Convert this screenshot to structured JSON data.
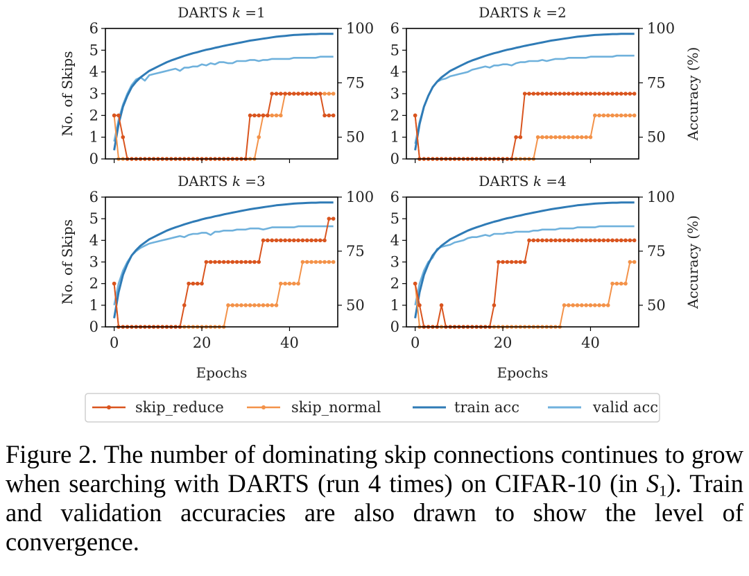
{
  "colors": {
    "skip_reduce": "#d9541e",
    "skip_normal": "#f39249",
    "train_acc": "#2f7bb6",
    "valid_acc": "#6fb1dc"
  },
  "chart_data": {
    "type": "line",
    "xlabel": "Epochs",
    "ylabel_left": "No. of Skips",
    "ylabel_right": "Accuracy (%)",
    "xlim": [
      -2,
      51
    ],
    "ylim_left": [
      0,
      6
    ],
    "ylim_right": [
      40,
      100
    ],
    "xticks": [
      0,
      20,
      40
    ],
    "yticks_left": [
      0,
      1,
      2,
      3,
      4,
      5,
      6
    ],
    "yticks_right": [
      50,
      75,
      100
    ],
    "legend": {
      "position": "bottom",
      "entries": [
        "skip_reduce",
        "skip_normal",
        "train acc",
        "valid acc"
      ]
    },
    "panels": [
      {
        "title_prefix": "DARTS ",
        "k_symbol": "k",
        "k_text": " =1",
        "skip_reduce": [
          2,
          2,
          1,
          0,
          0,
          0,
          0,
          0,
          0,
          0,
          0,
          0,
          0,
          0,
          0,
          0,
          0,
          0,
          0,
          0,
          0,
          0,
          0,
          0,
          0,
          0,
          0,
          0,
          0,
          0,
          0,
          2,
          2,
          2,
          2,
          2,
          3,
          3,
          3,
          3,
          3,
          3,
          3,
          3,
          3,
          3,
          3,
          3,
          2,
          2,
          2
        ],
        "skip_normal": [
          2,
          0,
          0,
          0,
          0,
          0,
          0,
          0,
          0,
          0,
          0,
          0,
          0,
          0,
          0,
          0,
          0,
          0,
          0,
          0,
          0,
          0,
          0,
          0,
          0,
          0,
          0,
          0,
          0,
          0,
          0,
          0,
          0,
          1,
          2,
          2,
          2,
          2,
          2,
          3,
          3,
          3,
          3,
          3,
          3,
          3,
          3,
          3,
          3,
          3,
          3
        ],
        "train_acc": [
          44,
          56,
          64,
          69,
          73,
          75.5,
          77.5,
          79,
          80.5,
          81.5,
          82.5,
          83.5,
          84.5,
          85.3,
          86,
          86.7,
          87.4,
          88,
          88.6,
          89.1,
          89.7,
          90.2,
          90.6,
          91.1,
          91.5,
          92,
          92.4,
          92.8,
          93.2,
          93.6,
          94,
          94.4,
          94.7,
          95,
          95.3,
          95.6,
          95.9,
          96.2,
          96.4,
          96.6,
          96.8,
          97,
          97.1,
          97.2,
          97.3,
          97.4,
          97.4,
          97.5,
          97.5,
          97.5,
          97.5
        ],
        "valid_acc": [
          48,
          58,
          65,
          70,
          74,
          76.5,
          77.5,
          76,
          78.5,
          79,
          79.5,
          80,
          80.5,
          81,
          81.5,
          80.5,
          82,
          82,
          82.5,
          82.5,
          83.5,
          83,
          84,
          83.5,
          84.5,
          84.5,
          84,
          84,
          85,
          85,
          85,
          85.5,
          85.5,
          85,
          85.5,
          85.5,
          86,
          86,
          86,
          86,
          86,
          86.5,
          86.5,
          86.5,
          86.5,
          86.5,
          86.5,
          87,
          87,
          87,
          87
        ]
      },
      {
        "title_prefix": "DARTS ",
        "k_symbol": "k",
        "k_text": " =2",
        "skip_reduce": [
          2,
          0,
          0,
          0,
          0,
          0,
          0,
          0,
          0,
          0,
          0,
          0,
          0,
          0,
          0,
          0,
          0,
          0,
          0,
          0,
          0,
          0,
          0,
          1,
          1,
          3,
          3,
          3,
          3,
          3,
          3,
          3,
          3,
          3,
          3,
          3,
          3,
          3,
          3,
          3,
          3,
          3,
          3,
          3,
          3,
          3,
          3,
          3,
          3,
          3,
          3
        ],
        "skip_normal": [
          2,
          0,
          0,
          0,
          0,
          0,
          0,
          0,
          0,
          0,
          0,
          0,
          0,
          0,
          0,
          0,
          0,
          0,
          0,
          0,
          0,
          0,
          0,
          0,
          0,
          0,
          0,
          0,
          1,
          1,
          1,
          1,
          1,
          1,
          1,
          1,
          1,
          1,
          1,
          1,
          1,
          2,
          2,
          2,
          2,
          2,
          2,
          2,
          2,
          2,
          2
        ],
        "train_acc": [
          44,
          56,
          64,
          69,
          73,
          75.5,
          77.5,
          79,
          80.5,
          81.5,
          82.5,
          83.5,
          84.5,
          85.3,
          86,
          86.7,
          87.4,
          88,
          88.6,
          89.1,
          89.7,
          90.2,
          90.6,
          91.1,
          91.5,
          92,
          92.4,
          92.8,
          93.2,
          93.6,
          94,
          94.4,
          94.7,
          95,
          95.3,
          95.6,
          95.9,
          96.2,
          96.4,
          96.6,
          96.8,
          97,
          97.1,
          97.2,
          97.3,
          97.4,
          97.4,
          97.5,
          97.5,
          97.5,
          97.5
        ],
        "valid_acc": [
          47,
          57,
          64,
          69,
          73,
          75.5,
          76.5,
          77,
          78,
          78.5,
          79,
          79.5,
          80,
          81,
          81.5,
          82,
          82.5,
          82,
          83,
          83,
          83.5,
          83.5,
          83,
          84,
          84.5,
          84.5,
          85,
          85,
          85,
          85.5,
          85,
          85.5,
          86,
          86,
          86,
          86.5,
          86.5,
          86.5,
          86.5,
          86.5,
          87,
          87,
          87,
          87,
          87,
          87,
          87.5,
          87.5,
          87.5,
          87.5,
          87.5
        ]
      },
      {
        "title_prefix": "DARTS ",
        "k_symbol": "k",
        "k_text": " =3",
        "skip_reduce": [
          2,
          0,
          0,
          0,
          0,
          0,
          0,
          0,
          0,
          0,
          0,
          0,
          0,
          0,
          0,
          0,
          1,
          2,
          2,
          2,
          2,
          3,
          3,
          3,
          3,
          3,
          3,
          3,
          3,
          3,
          3,
          3,
          3,
          3,
          4,
          4,
          4,
          4,
          4,
          4,
          4,
          4,
          4,
          4,
          4,
          4,
          4,
          4,
          4,
          5,
          5
        ],
        "skip_normal": [
          2,
          0,
          0,
          0,
          0,
          0,
          0,
          0,
          0,
          0,
          0,
          0,
          0,
          0,
          0,
          0,
          0,
          0,
          0,
          0,
          0,
          0,
          0,
          0,
          0,
          0,
          1,
          1,
          1,
          1,
          1,
          1,
          1,
          1,
          1,
          1,
          1,
          1,
          2,
          2,
          2,
          2,
          2,
          3,
          3,
          3,
          3,
          3,
          3,
          3,
          3
        ],
        "train_acc": [
          44,
          56,
          64,
          69,
          73,
          75.5,
          77.5,
          79,
          80.5,
          81.5,
          82.5,
          83.5,
          84.5,
          85.3,
          86,
          86.7,
          87.4,
          88,
          88.6,
          89.1,
          89.7,
          90.2,
          90.6,
          91.1,
          91.5,
          92,
          92.4,
          92.8,
          93.2,
          93.6,
          94,
          94.4,
          94.7,
          95,
          95.3,
          95.6,
          95.9,
          96.2,
          96.4,
          96.6,
          96.8,
          97,
          97.1,
          97.2,
          97.3,
          97.4,
          97.4,
          97.5,
          97.5,
          97.5,
          97.5
        ],
        "valid_acc": [
          50,
          60,
          66,
          70,
          73,
          75,
          76.5,
          77.5,
          78.5,
          79,
          79.5,
          80,
          80.5,
          81,
          81.5,
          82,
          81.5,
          82.5,
          83,
          83,
          83.5,
          83.5,
          82.5,
          84,
          84,
          84.5,
          84.5,
          84.5,
          85,
          85,
          85,
          85.5,
          85.5,
          85.5,
          85,
          85.5,
          86,
          86,
          86,
          86,
          86,
          86,
          86.5,
          86.5,
          86.5,
          86.5,
          86.5,
          86.5,
          86.5,
          86.5,
          86.5
        ]
      },
      {
        "title_prefix": "DARTS ",
        "k_symbol": "k",
        "k_text": " =4",
        "skip_reduce": [
          2,
          1,
          0,
          0,
          0,
          0,
          1,
          0,
          0,
          0,
          0,
          0,
          0,
          0,
          0,
          0,
          0,
          0,
          1,
          3,
          3,
          3,
          3,
          3,
          3,
          3,
          4,
          4,
          4,
          4,
          4,
          4,
          4,
          4,
          4,
          4,
          4,
          4,
          4,
          4,
          4,
          4,
          4,
          4,
          4,
          4,
          4,
          4,
          4,
          4,
          4
        ],
        "skip_normal": [
          2,
          0,
          0,
          0,
          0,
          0,
          0,
          0,
          0,
          0,
          0,
          0,
          0,
          0,
          0,
          0,
          0,
          0,
          0,
          0,
          0,
          0,
          0,
          0,
          0,
          0,
          0,
          0,
          0,
          0,
          0,
          0,
          0,
          0,
          1,
          1,
          1,
          1,
          1,
          1,
          1,
          1,
          1,
          1,
          1,
          2,
          2,
          2,
          2,
          3,
          3
        ],
        "train_acc": [
          44,
          56,
          64,
          69,
          73,
          75.5,
          77.5,
          79,
          80.5,
          81.5,
          82.5,
          83.5,
          84.5,
          85.3,
          86,
          86.7,
          87.4,
          88,
          88.6,
          89.1,
          89.7,
          90.2,
          90.6,
          91.1,
          91.5,
          92,
          92.4,
          92.8,
          93.2,
          93.6,
          94,
          94.4,
          94.7,
          95,
          95.3,
          95.6,
          95.9,
          96.2,
          96.4,
          96.6,
          96.8,
          97,
          97.1,
          97.2,
          97.3,
          97.4,
          97.4,
          97.5,
          97.5,
          97.5,
          97.5
        ],
        "valid_acc": [
          50,
          60,
          66,
          70,
          72,
          76,
          77,
          77.5,
          78,
          79,
          79.5,
          80,
          81,
          81.5,
          81.5,
          82,
          82.5,
          82,
          83,
          83,
          83,
          83.5,
          83.5,
          84,
          84,
          84,
          84,
          84.5,
          84.5,
          85,
          85,
          85,
          85,
          85.5,
          85.5,
          85.5,
          85.5,
          86,
          86,
          86,
          86,
          86,
          86.5,
          86.5,
          86.5,
          86.5,
          86.5,
          86.5,
          86.5,
          86.5,
          86.5
        ]
      }
    ]
  },
  "caption": {
    "text1": "Figure 2. The number of dominating skip connections continues to grow when searching with DARTS (run 4 times) on CIFAR-10 (in ",
    "math_var": "S",
    "math_sub": "1",
    "text2": ").  Train and validation accuracies are also drawn to show the level of convergence."
  }
}
